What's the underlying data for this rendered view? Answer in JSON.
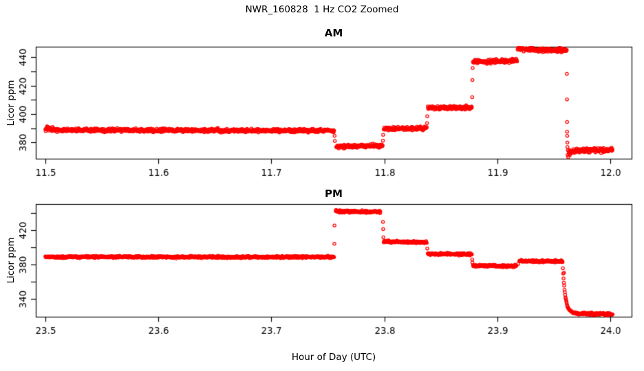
{
  "title": "NWR_160828  1 Hz CO2 Zoomed",
  "xlabel": "Hour of Day (UTC)",
  "point_color": "#FF0000",
  "axis_color": "#000000",
  "background": "#FFFFFF",
  "chart_data": [
    {
      "type": "scatter",
      "marker": "open-circle",
      "title": "AM",
      "ylabel": "Licor ppm",
      "xlim": [
        11.4915,
        12.0189
      ],
      "ylim": [
        368.6,
        447.3
      ],
      "xticks": [
        11.5,
        11.6,
        11.7,
        11.8,
        11.9,
        12.0
      ],
      "xtick_labels": [
        "11.5",
        "11.6",
        "11.7",
        "11.8",
        "11.9",
        "12.0"
      ],
      "yticks": [
        380,
        390,
        400,
        410,
        420,
        430,
        440
      ],
      "ytick_labels": [
        "380",
        "",
        "400",
        "",
        "420",
        "",
        "440"
      ],
      "sample_rate_hz": 1,
      "segments": [
        {
          "x0": 11.5,
          "x1": 11.513,
          "y0": 389.8,
          "y1": 388.8,
          "sd": 0.8
        },
        {
          "x0": 11.513,
          "x1": 11.7555,
          "y0": 388.7,
          "y1": 388.3,
          "sd": 0.6
        },
        {
          "x0": 11.7575,
          "x1": 11.7985,
          "y0": 377.2,
          "y1": 377.7,
          "sd": 0.6
        },
        {
          "x0": 11.7995,
          "x1": 11.8375,
          "y0": 389.7,
          "y1": 390.0,
          "sd": 0.6
        },
        {
          "x0": 11.8385,
          "x1": 11.8775,
          "y0": 404.2,
          "y1": 404.6,
          "sd": 0.6
        },
        {
          "x0": 11.8785,
          "x1": 11.9175,
          "y0": 436.8,
          "y1": 437.6,
          "sd": 0.7
        },
        {
          "x0": 11.918,
          "x1": 11.931,
          "y0": 446.2,
          "y1": 445.3,
          "sd": 0.8
        },
        {
          "x0": 11.931,
          "x1": 11.9615,
          "y0": 445.2,
          "y1": 444.9,
          "sd": 0.7
        },
        {
          "x0": 11.9622,
          "x1": 11.965,
          "y0": 372.8,
          "y1": 374.0,
          "sd": 1.6
        },
        {
          "x0": 11.965,
          "x1": 12.002,
          "y0": 374.3,
          "y1": 374.6,
          "sd": 0.8
        }
      ],
      "decay": null,
      "transition_points": [
        [
          11.756,
          384.6
        ],
        [
          11.7562,
          381.0
        ],
        [
          11.7988,
          381.3
        ],
        [
          11.799,
          385.4
        ],
        [
          11.8378,
          393.6
        ],
        [
          11.838,
          398.4
        ],
        [
          11.8778,
          411.8
        ],
        [
          11.878,
          423.9
        ],
        [
          11.8782,
          432.3
        ],
        [
          11.9616,
          428.2
        ],
        [
          11.9617,
          410.3
        ],
        [
          11.9618,
          394.4
        ],
        [
          11.9618,
          387.6
        ],
        [
          11.9619,
          384.7
        ],
        [
          11.962,
          379.9
        ],
        [
          11.9621,
          376.8
        ]
      ]
    },
    {
      "type": "scatter",
      "marker": "open-circle",
      "title": "PM",
      "ylabel": "Licor ppm",
      "xlim": [
        23.4915,
        24.0189
      ],
      "ylim": [
        319.2,
        450.4
      ],
      "xticks": [
        23.5,
        23.6,
        23.7,
        23.8,
        23.9,
        24.0
      ],
      "xtick_labels": [
        "23.5",
        "23.6",
        "23.7",
        "23.8",
        "23.9",
        "24.0"
      ],
      "yticks": [
        340,
        360,
        380,
        400,
        420,
        440
      ],
      "ytick_labels": [
        "340",
        "",
        "380",
        "",
        "420",
        ""
      ],
      "sample_rate_hz": 1,
      "segments": [
        {
          "x0": 23.5,
          "x1": 23.7555,
          "y0": 388.9,
          "y1": 388.7,
          "sd": 0.55
        },
        {
          "x0": 23.757,
          "x1": 23.7605,
          "y0": 443.0,
          "y1": 441.9,
          "sd": 0.9
        },
        {
          "x0": 23.7605,
          "x1": 23.7965,
          "y0": 441.8,
          "y1": 441.3,
          "sd": 0.7
        },
        {
          "x0": 23.7995,
          "x1": 23.8375,
          "y0": 406.8,
          "y1": 405.9,
          "sd": 0.6
        },
        {
          "x0": 23.8385,
          "x1": 23.8775,
          "y0": 392.4,
          "y1": 392.0,
          "sd": 0.6
        },
        {
          "x0": 23.8785,
          "x1": 23.917,
          "y0": 378.6,
          "y1": 378.2,
          "sd": 0.6
        },
        {
          "x0": 23.9195,
          "x1": 23.9575,
          "y0": 383.9,
          "y1": 383.6,
          "sd": 0.6
        },
        {
          "x0": 23.97,
          "x1": 24.002,
          "y0": 322.8,
          "y1": 322.3,
          "sd": 0.7
        }
      ],
      "decay": {
        "x0": 23.9578,
        "x1": 23.97,
        "y_from": 383.0,
        "y_to": 323.3,
        "tau": 0.0022,
        "sd": 0.45
      },
      "transition_points": [
        [
          23.7558,
          404.2
        ],
        [
          23.7559,
          425.5
        ],
        [
          23.7988,
          429.6
        ],
        [
          23.799,
          421.3
        ],
        [
          23.7992,
          411.6
        ],
        [
          23.838,
          398.7
        ],
        [
          23.8778,
          385.9
        ],
        [
          23.878,
          382.3
        ],
        [
          23.9185,
          380.6
        ],
        [
          23.959,
          370.5
        ]
      ]
    }
  ]
}
